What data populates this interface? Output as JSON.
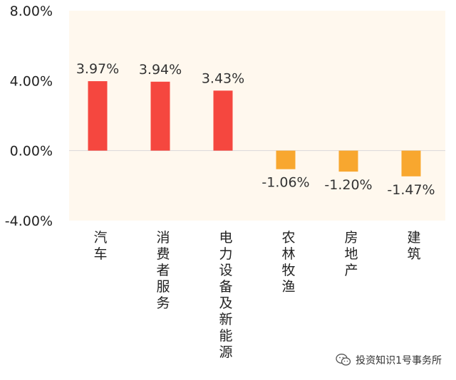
{
  "chart_data": {
    "type": "bar",
    "categories": [
      "汽车",
      "消费者服务",
      "电力设备及新能源",
      "农林牧渔",
      "房地产",
      "建筑"
    ],
    "values": [
      3.97,
      3.94,
      3.43,
      -1.06,
      -1.2,
      -1.47
    ],
    "data_labels": [
      "3.97%",
      "3.94%",
      "3.43%",
      "-1.06%",
      "-1.20%",
      "-1.47%"
    ],
    "y_ticks": [
      {
        "value": 8,
        "label": "8.00%"
      },
      {
        "value": 4,
        "label": "4.00%"
      },
      {
        "value": 0,
        "label": "0.00%"
      },
      {
        "value": -4,
        "label": "-4.00%"
      }
    ],
    "ylim": [
      -4,
      8
    ],
    "title": "",
    "xlabel": "",
    "ylabel": "",
    "grid": false,
    "colors": {
      "positive": "#f5473f",
      "negative": "#f8a72f",
      "plot_background": "#fff8ee"
    }
  },
  "watermark": {
    "icon": "wechat-icon",
    "text": "投资知识1号事务所"
  }
}
